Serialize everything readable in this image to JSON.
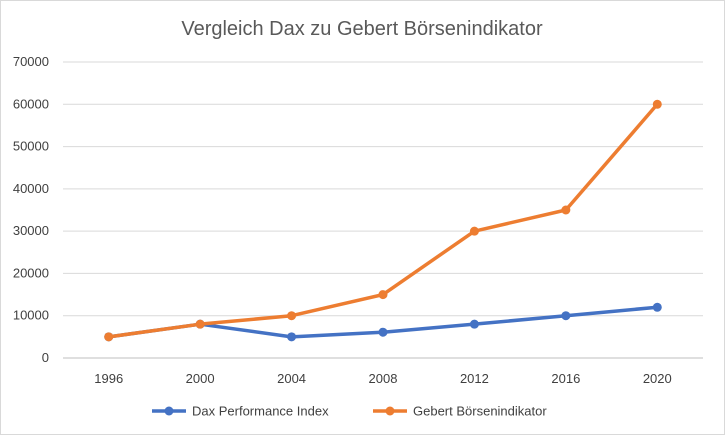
{
  "chart_data": {
    "type": "line",
    "title": "Vergleich Dax zu Gebert Börsenindikator",
    "xlabel": "",
    "ylabel": "",
    "categories": [
      "1996",
      "2000",
      "2004",
      "2008",
      "2012",
      "2016",
      "2020"
    ],
    "ylim": [
      0,
      70000
    ],
    "yticks": [
      "0",
      "10000",
      "20000",
      "30000",
      "40000",
      "50000",
      "60000",
      "70000"
    ],
    "grid": true,
    "legend_position": "bottom",
    "series": [
      {
        "name": "Dax Performance Index",
        "color": "#4472C4",
        "marker": "circle",
        "values": [
          5000,
          8000,
          5000,
          6100,
          8000,
          10000,
          12000
        ]
      },
      {
        "name": "Gebert Börsenindikator",
        "color": "#ED7D31",
        "marker": "circle",
        "values": [
          5000,
          8000,
          10000,
          15000,
          30000,
          35000,
          60000
        ]
      }
    ]
  }
}
